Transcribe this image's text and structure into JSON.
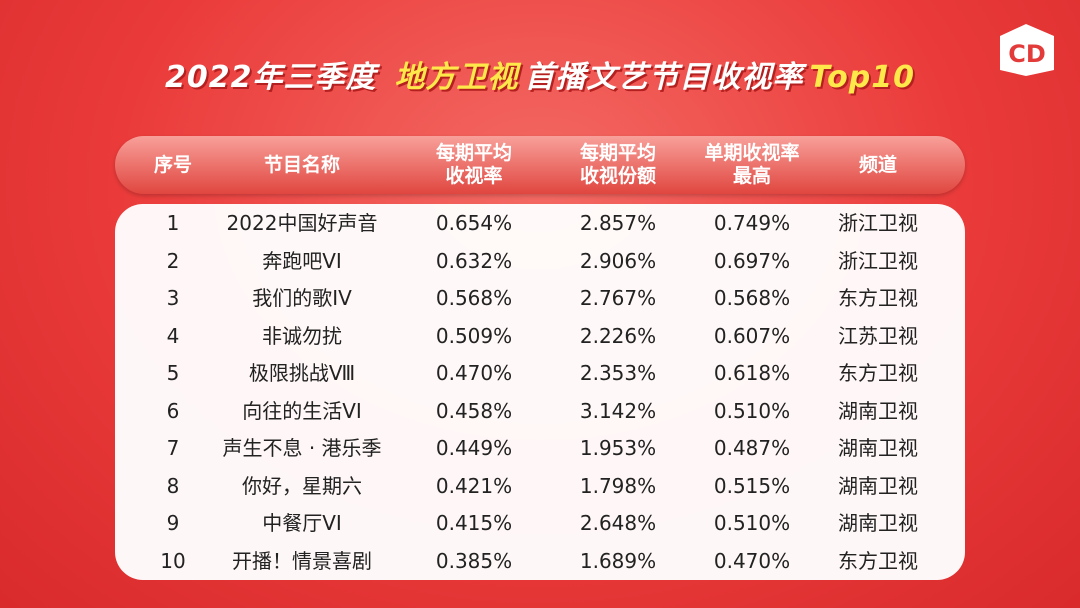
{
  "title": {
    "part1": "2022年三季度",
    "highlight": "地方卫视",
    "part2": "首播文艺节目收视率",
    "part3": "Top10"
  },
  "table": {
    "headers": [
      [
        "序号"
      ],
      [
        "节目名称"
      ],
      [
        "每期平均",
        "收视率"
      ],
      [
        "每期平均",
        "收视份额"
      ],
      [
        "单期收视率",
        "最高"
      ],
      [
        "频道"
      ]
    ],
    "rows": [
      [
        "1",
        "2022中国好声音",
        "0.654%",
        "2.857%",
        "0.749%",
        "浙江卫视"
      ],
      [
        "2",
        "奔跑吧VI",
        "0.632%",
        "2.906%",
        "0.697%",
        "浙江卫视"
      ],
      [
        "3",
        "我们的歌IV",
        "0.568%",
        "2.767%",
        "0.568%",
        "东方卫视"
      ],
      [
        "4",
        "非诚勿扰",
        "0.509%",
        "2.226%",
        "0.607%",
        "江苏卫视"
      ],
      [
        "5",
        "极限挑战Ⅷ",
        "0.470%",
        "2.353%",
        "0.618%",
        "东方卫视"
      ],
      [
        "6",
        "向往的生活VI",
        "0.458%",
        "3.142%",
        "0.510%",
        "湖南卫视"
      ],
      [
        "7",
        "声生不息 · 港乐季",
        "0.449%",
        "1.953%",
        "0.487%",
        "湖南卫视"
      ],
      [
        "8",
        "你好，星期六",
        "0.421%",
        "1.798%",
        "0.515%",
        "湖南卫视"
      ],
      [
        "9",
        "中餐厅VI",
        "0.415%",
        "2.648%",
        "0.510%",
        "湖南卫视"
      ],
      [
        "10",
        "开播！情景喜剧",
        "0.385%",
        "1.689%",
        "0.470%",
        "东方卫视"
      ]
    ]
  }
}
